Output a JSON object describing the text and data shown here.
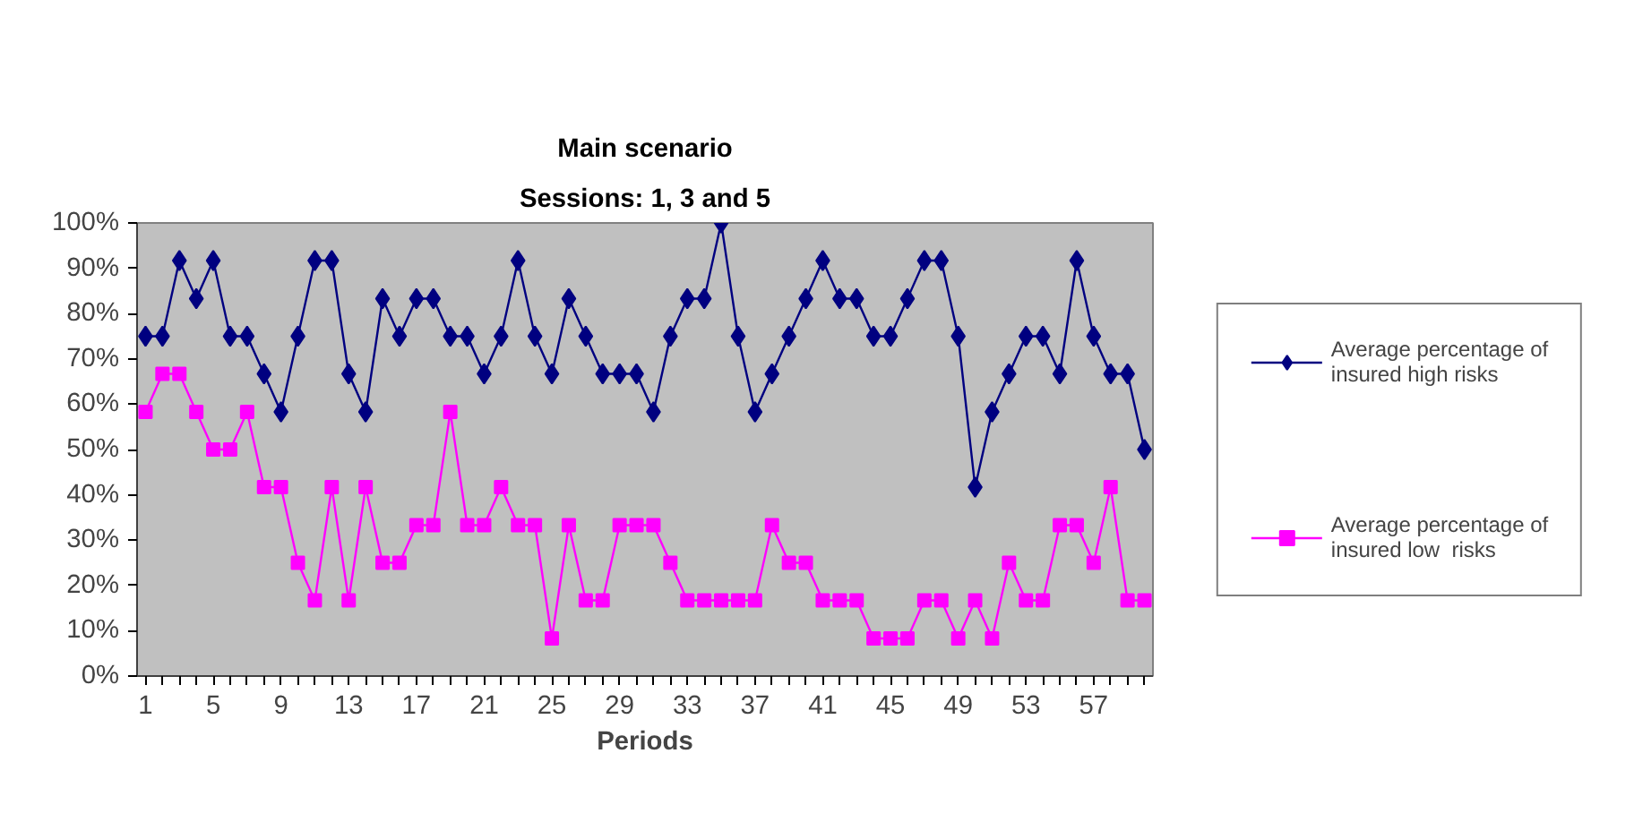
{
  "chart_data": {
    "type": "line",
    "title": "Main scenario",
    "subtitle": "Sessions: 1, 3 and 5",
    "xlabel": "Periods",
    "x": [
      1,
      2,
      3,
      4,
      5,
      6,
      7,
      8,
      9,
      10,
      11,
      12,
      13,
      14,
      15,
      16,
      17,
      18,
      19,
      20,
      21,
      22,
      23,
      24,
      25,
      26,
      27,
      28,
      29,
      30,
      31,
      32,
      33,
      34,
      35,
      36,
      37,
      38,
      39,
      40,
      41,
      42,
      43,
      44,
      45,
      46,
      47,
      48,
      49,
      50,
      51,
      52,
      53,
      54,
      55,
      56,
      57,
      58,
      59,
      60
    ],
    "xlim": [
      0.5,
      60.5
    ],
    "xticks": [
      1,
      {
        "value": 2,
        "label": null
      },
      {
        "value": 3,
        "label": null
      },
      {
        "value": 4,
        "label": null
      },
      5,
      {
        "value": 6,
        "label": null
      },
      {
        "value": 7,
        "label": null
      },
      {
        "value": 8,
        "label": null
      },
      9,
      {
        "value": 10,
        "label": null
      },
      {
        "value": 11,
        "label": null
      },
      {
        "value": 12,
        "label": null
      },
      13,
      {
        "value": 14,
        "label": null
      },
      {
        "value": 15,
        "label": null
      },
      {
        "value": 16,
        "label": null
      },
      17,
      {
        "value": 18,
        "label": null
      },
      {
        "value": 19,
        "label": null
      },
      {
        "value": 20,
        "label": null
      },
      21,
      {
        "value": 22,
        "label": null
      },
      {
        "value": 23,
        "label": null
      },
      {
        "value": 24,
        "label": null
      },
      25,
      {
        "value": 26,
        "label": null
      },
      {
        "value": 27,
        "label": null
      },
      {
        "value": 28,
        "label": null
      },
      29,
      {
        "value": 30,
        "label": null
      },
      {
        "value": 31,
        "label": null
      },
      {
        "value": 32,
        "label": null
      },
      33,
      {
        "value": 34,
        "label": null
      },
      {
        "value": 35,
        "label": null
      },
      {
        "value": 36,
        "label": null
      },
      37,
      {
        "value": 38,
        "label": null
      },
      {
        "value": 39,
        "label": null
      },
      {
        "value": 40,
        "label": null
      },
      41,
      {
        "value": 42,
        "label": null
      },
      {
        "value": 43,
        "label": null
      },
      {
        "value": 44,
        "label": null
      },
      45,
      {
        "value": 46,
        "label": null
      },
      {
        "value": 47,
        "label": null
      },
      {
        "value": 48,
        "label": null
      },
      49,
      {
        "value": 50,
        "label": null
      },
      {
        "value": 51,
        "label": null
      },
      {
        "value": 52,
        "label": null
      },
      53,
      {
        "value": 54,
        "label": null
      },
      {
        "value": 55,
        "label": null
      },
      {
        "value": 56,
        "label": null
      },
      57,
      {
        "value": 58,
        "label": null
      },
      {
        "value": 59,
        "label": null
      },
      {
        "value": 60,
        "label": null
      }
    ],
    "ylim": [
      0,
      100
    ],
    "yticks": [
      {
        "value": 0,
        "label": "0%"
      },
      {
        "value": 10,
        "label": "10%"
      },
      {
        "value": 20,
        "label": "20%"
      },
      {
        "value": 30,
        "label": "30%"
      },
      {
        "value": 40,
        "label": "40%"
      },
      {
        "value": 50,
        "label": "50%"
      },
      {
        "value": 60,
        "label": "60%"
      },
      {
        "value": 70,
        "label": "70%"
      },
      {
        "value": 80,
        "label": "80%"
      },
      {
        "value": 90,
        "label": "90%"
      },
      {
        "value": 100,
        "label": "100%"
      }
    ],
    "grid": false,
    "legend": "right",
    "line_style": "solid",
    "series": [
      {
        "name": "Average percentage of insured high risks",
        "color": "#000080",
        "marker": "diamond",
        "values": [
          75,
          75,
          91.7,
          83.3,
          91.7,
          75,
          75,
          66.7,
          58.3,
          75,
          91.7,
          91.7,
          66.7,
          58.3,
          83.3,
          75,
          83.3,
          83.3,
          75,
          75,
          66.7,
          75,
          91.7,
          75,
          66.7,
          83.3,
          75,
          66.7,
          66.7,
          66.7,
          58.3,
          75,
          83.3,
          83.3,
          100,
          75,
          58.3,
          66.7,
          75,
          83.3,
          91.7,
          83.3,
          83.3,
          75,
          75,
          83.3,
          91.7,
          91.7,
          75,
          41.7,
          58.3,
          66.7,
          75,
          75,
          66.7,
          91.7,
          75,
          66.7,
          66.7,
          50
        ]
      },
      {
        "name": "Average percentage of insured low  risks",
        "color": "#ff00ff",
        "marker": "square",
        "values": [
          58.3,
          66.7,
          66.7,
          58.3,
          50,
          50,
          58.3,
          41.7,
          41.7,
          25,
          16.7,
          41.7,
          16.7,
          41.7,
          25,
          25,
          33.3,
          33.3,
          58.3,
          33.3,
          33.3,
          41.7,
          33.3,
          33.3,
          8.3,
          33.3,
          16.7,
          16.7,
          33.3,
          33.3,
          33.3,
          25,
          16.7,
          16.7,
          16.7,
          16.7,
          16.7,
          33.3,
          25,
          25,
          16.7,
          16.7,
          16.7,
          8.3,
          8.3,
          8.3,
          16.7,
          16.7,
          8.3,
          16.7,
          8.3,
          25,
          16.7,
          16.7,
          33.3,
          33.3,
          25,
          41.7,
          16.7,
          16.7
        ]
      }
    ]
  }
}
